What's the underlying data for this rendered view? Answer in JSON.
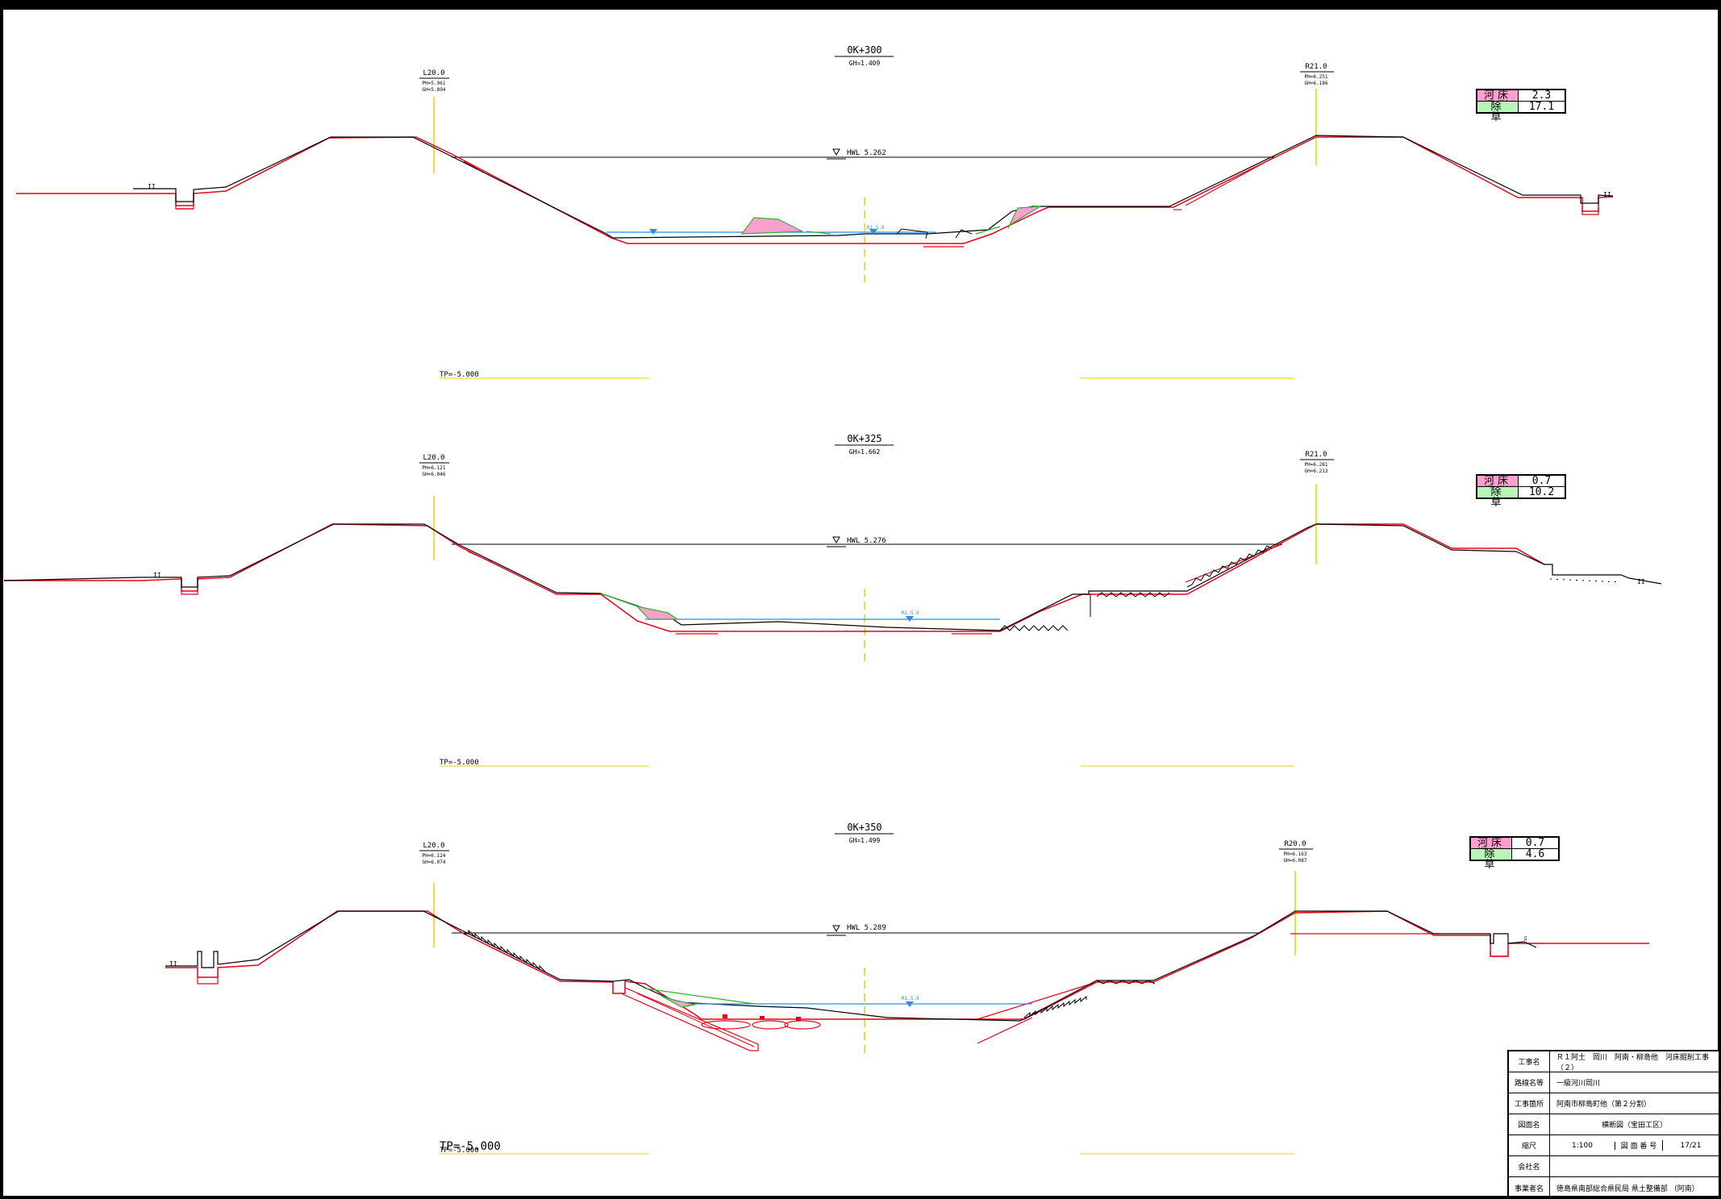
{
  "sections": [
    {
      "station": "0K+300",
      "gh": "GH=1.409",
      "left": {
        "name": "L20.0",
        "ph": "PH=5.961",
        "gh": "GH=5.894"
      },
      "right": {
        "name": "R21.0",
        "ph": "PH=6.251",
        "gh": "GH=6.186"
      },
      "hwl": "HWL 5.262",
      "water": "R1.5.9",
      "tp": "TP=-5.000",
      "legend": {
        "excavation_label": "河床掘削",
        "excavation_value": "2.3",
        "weeding_label": "除　草",
        "weeding_value": "17.1"
      }
    },
    {
      "station": "0K+325",
      "gh": "GH=1.662",
      "left": {
        "name": "L20.0",
        "ph": "PH=6.121",
        "gh": "GH=6.046"
      },
      "right": {
        "name": "R21.0",
        "ph": "PH=6.281",
        "gh": "GH=6.213"
      },
      "hwl": "HWL 5.276",
      "water": "R1.5.9",
      "tp": "TP=-5.000",
      "legend": {
        "excavation_label": "河床掘削",
        "excavation_value": "0.7",
        "weeding_label": "除　草",
        "weeding_value": "10.2"
      }
    },
    {
      "station": "0K+350",
      "gh": "GH=1.499",
      "left": {
        "name": "L20.0",
        "ph": "PH=6.124",
        "gh": "GH=6.074"
      },
      "right": {
        "name": "R20.0",
        "ph": "PH=6.163",
        "gh": "GH=6.087"
      },
      "hwl": "HWL 5.289",
      "water": "R1.5.9",
      "tp": "TP=-5.000",
      "tp_overlay": "TP=-5.000",
      "legend": {
        "excavation_label": "河床掘削",
        "excavation_value": "0.7",
        "weeding_label": "除　草",
        "weeding_value": "4.6"
      }
    }
  ],
  "title_block": {
    "project_key": "工事名",
    "project_value": "Ｒ１阿土　岡川　阿南・柳島他　河床掘削工事（２）",
    "route_key": "路線名等",
    "route_value": "一級河川岡川",
    "location_key": "工事箇所",
    "location_value": "阿南市柳島町他（第２分割）",
    "drawing_key": "図面名",
    "drawing_value": "横断図（宝田工区）",
    "scale_key": "縮尺",
    "scale_value": "1:100",
    "number_key": "図 面 番 号",
    "number_value": "17/21",
    "company_key": "会社名",
    "company_value": "",
    "owner_key": "事業者名",
    "owner_value": "徳島県南部総合県民局 県土整備部 （阿南）"
  },
  "colors": {
    "design_line": "#e8001a",
    "ground_line": "#000000",
    "water": "#2a8fe8",
    "centerline": "#e6d400",
    "excavation_fill": "#ff9fcf",
    "weeding_line": "#2db32d"
  }
}
